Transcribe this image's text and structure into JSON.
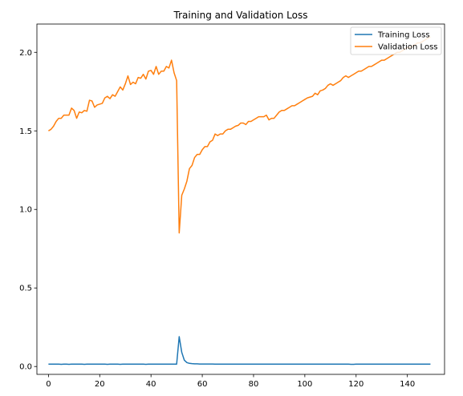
{
  "chart_data": {
    "type": "line",
    "title": "Training and Validation Loss",
    "xlabel": "",
    "ylabel": "",
    "xlim": [
      -4.5,
      154.5
    ],
    "ylim": [
      -0.05,
      2.18
    ],
    "xticks": [
      0,
      20,
      40,
      60,
      80,
      100,
      120,
      140
    ],
    "yticks": [
      0.0,
      0.5,
      1.0,
      1.5,
      2.0
    ],
    "grid": false,
    "legend": {
      "placement": "top-right"
    },
    "x_start": 0,
    "series": [
      {
        "name": "Training Loss",
        "color": "#1f77b4",
        "values": [
          0.015,
          0.015,
          0.015,
          0.015,
          0.015,
          0.014,
          0.015,
          0.015,
          0.014,
          0.015,
          0.015,
          0.015,
          0.015,
          0.015,
          0.014,
          0.015,
          0.015,
          0.015,
          0.015,
          0.015,
          0.015,
          0.015,
          0.015,
          0.014,
          0.015,
          0.015,
          0.015,
          0.015,
          0.014,
          0.015,
          0.015,
          0.015,
          0.015,
          0.015,
          0.015,
          0.015,
          0.015,
          0.015,
          0.014,
          0.015,
          0.015,
          0.015,
          0.015,
          0.015,
          0.015,
          0.015,
          0.015,
          0.015,
          0.015,
          0.015,
          0.015,
          0.19,
          0.09,
          0.04,
          0.025,
          0.02,
          0.018,
          0.017,
          0.017,
          0.016,
          0.016,
          0.016,
          0.016,
          0.016,
          0.016,
          0.015,
          0.015,
          0.015,
          0.015,
          0.015,
          0.015,
          0.015,
          0.015,
          0.015,
          0.015,
          0.015,
          0.015,
          0.015,
          0.015,
          0.015,
          0.015,
          0.015,
          0.015,
          0.015,
          0.015,
          0.015,
          0.015,
          0.015,
          0.015,
          0.015,
          0.015,
          0.015,
          0.015,
          0.015,
          0.015,
          0.015,
          0.015,
          0.015,
          0.015,
          0.015,
          0.015,
          0.015,
          0.015,
          0.015,
          0.015,
          0.015,
          0.015,
          0.015,
          0.015,
          0.015,
          0.015,
          0.015,
          0.015,
          0.015,
          0.015,
          0.015,
          0.015,
          0.015,
          0.014,
          0.014,
          0.015,
          0.015,
          0.015,
          0.015,
          0.015,
          0.015,
          0.015,
          0.015,
          0.015,
          0.015,
          0.015,
          0.015,
          0.015,
          0.015,
          0.015,
          0.015,
          0.015,
          0.015,
          0.015,
          0.015,
          0.015,
          0.015,
          0.015,
          0.015,
          0.015,
          0.015,
          0.015,
          0.015,
          0.015,
          0.015
        ]
      },
      {
        "name": "Validation Loss",
        "color": "#ff7f0e",
        "values": [
          1.5,
          1.51,
          1.53,
          1.56,
          1.58,
          1.58,
          1.6,
          1.6,
          1.6,
          1.645,
          1.63,
          1.58,
          1.62,
          1.615,
          1.63,
          1.625,
          1.695,
          1.69,
          1.65,
          1.665,
          1.67,
          1.675,
          1.71,
          1.72,
          1.705,
          1.73,
          1.72,
          1.75,
          1.78,
          1.76,
          1.8,
          1.85,
          1.795,
          1.81,
          1.8,
          1.84,
          1.835,
          1.86,
          1.83,
          1.88,
          1.885,
          1.86,
          1.91,
          1.86,
          1.88,
          1.88,
          1.91,
          1.9,
          1.95,
          1.87,
          1.82,
          0.85,
          1.09,
          1.13,
          1.18,
          1.26,
          1.28,
          1.33,
          1.35,
          1.35,
          1.38,
          1.4,
          1.4,
          1.43,
          1.44,
          1.48,
          1.47,
          1.48,
          1.48,
          1.5,
          1.51,
          1.51,
          1.52,
          1.53,
          1.535,
          1.55,
          1.55,
          1.54,
          1.56,
          1.56,
          1.57,
          1.58,
          1.59,
          1.59,
          1.59,
          1.6,
          1.57,
          1.58,
          1.58,
          1.6,
          1.62,
          1.63,
          1.63,
          1.64,
          1.65,
          1.66,
          1.66,
          1.67,
          1.68,
          1.69,
          1.7,
          1.71,
          1.715,
          1.72,
          1.74,
          1.73,
          1.755,
          1.76,
          1.77,
          1.79,
          1.8,
          1.79,
          1.8,
          1.81,
          1.82,
          1.84,
          1.85,
          1.84,
          1.85,
          1.86,
          1.87,
          1.88,
          1.88,
          1.89,
          1.9,
          1.91,
          1.91,
          1.92,
          1.93,
          1.94,
          1.95,
          1.95,
          1.96,
          1.97,
          1.98,
          1.99,
          2.0,
          2.0,
          2.01,
          2.02,
          2.03,
          2.03,
          2.04,
          2.05,
          2.06,
          2.06,
          2.07,
          2.08,
          2.09,
          2.1
        ]
      }
    ]
  }
}
